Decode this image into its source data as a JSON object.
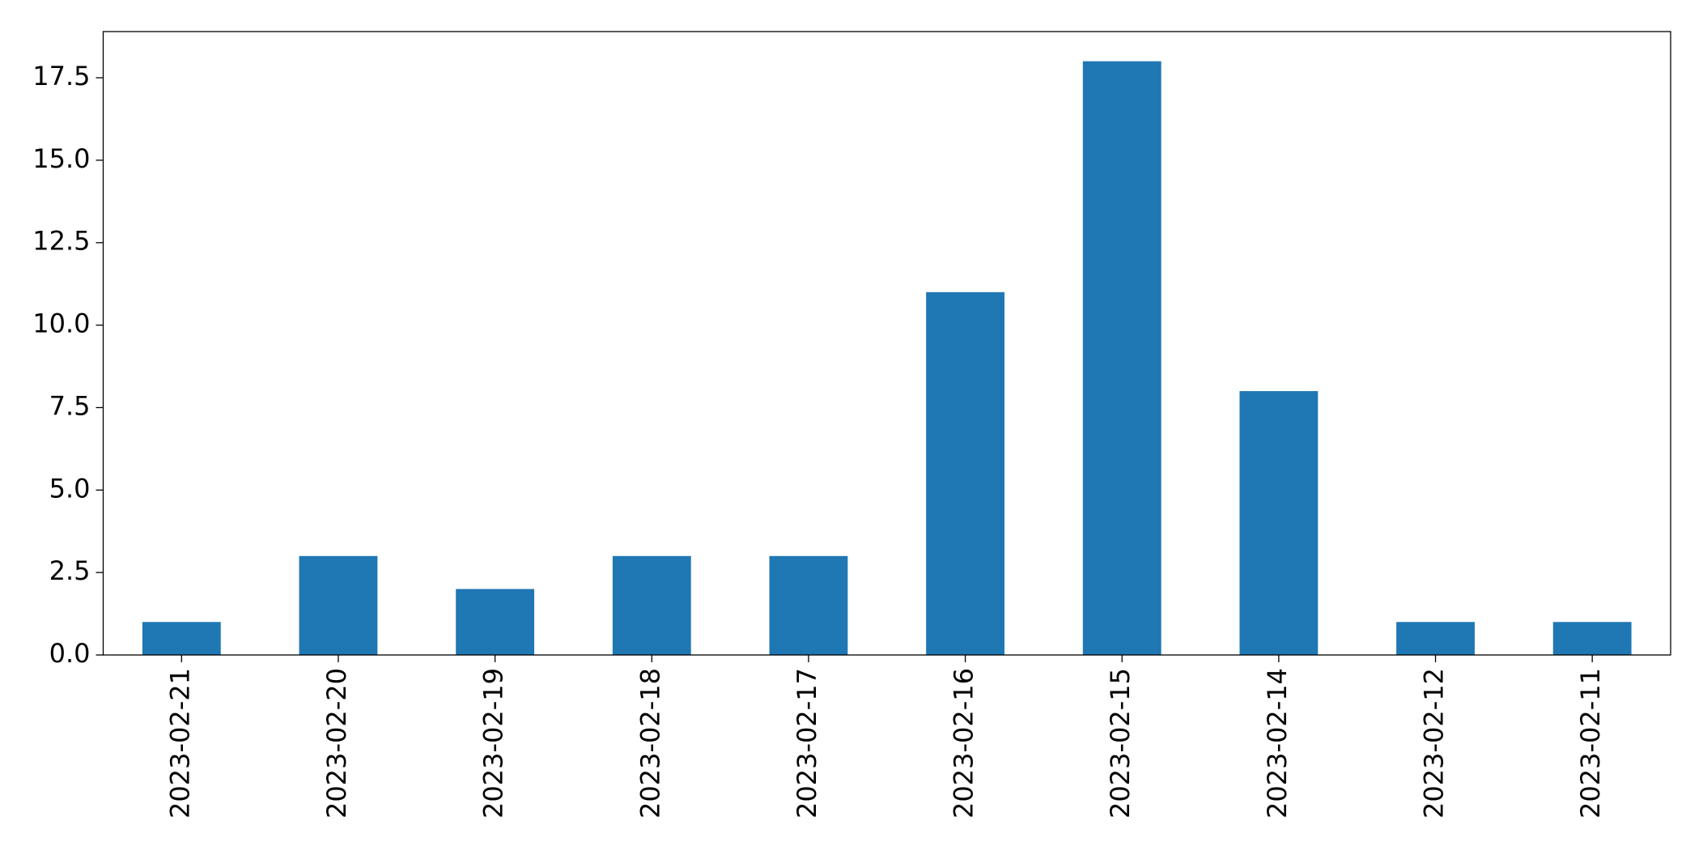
{
  "chart_data": {
    "type": "bar",
    "categories": [
      "2023-02-21",
      "2023-02-20",
      "2023-02-19",
      "2023-02-18",
      "2023-02-17",
      "2023-02-16",
      "2023-02-15",
      "2023-02-14",
      "2023-02-12",
      "2023-02-11"
    ],
    "values": [
      1,
      3,
      2,
      3,
      3,
      11,
      18,
      8,
      1,
      1
    ],
    "color": "#1f77b4",
    "ylim": [
      0,
      18.9
    ],
    "yticks": [
      {
        "value": 0,
        "label": "0.0"
      },
      2.5,
      {
        "value": 5,
        "label": "5.0"
      },
      7.5,
      {
        "value": 10,
        "label": "10.0"
      },
      12.5,
      {
        "value": 15,
        "label": "15.0"
      },
      17.5
    ],
    "grid": false
  }
}
